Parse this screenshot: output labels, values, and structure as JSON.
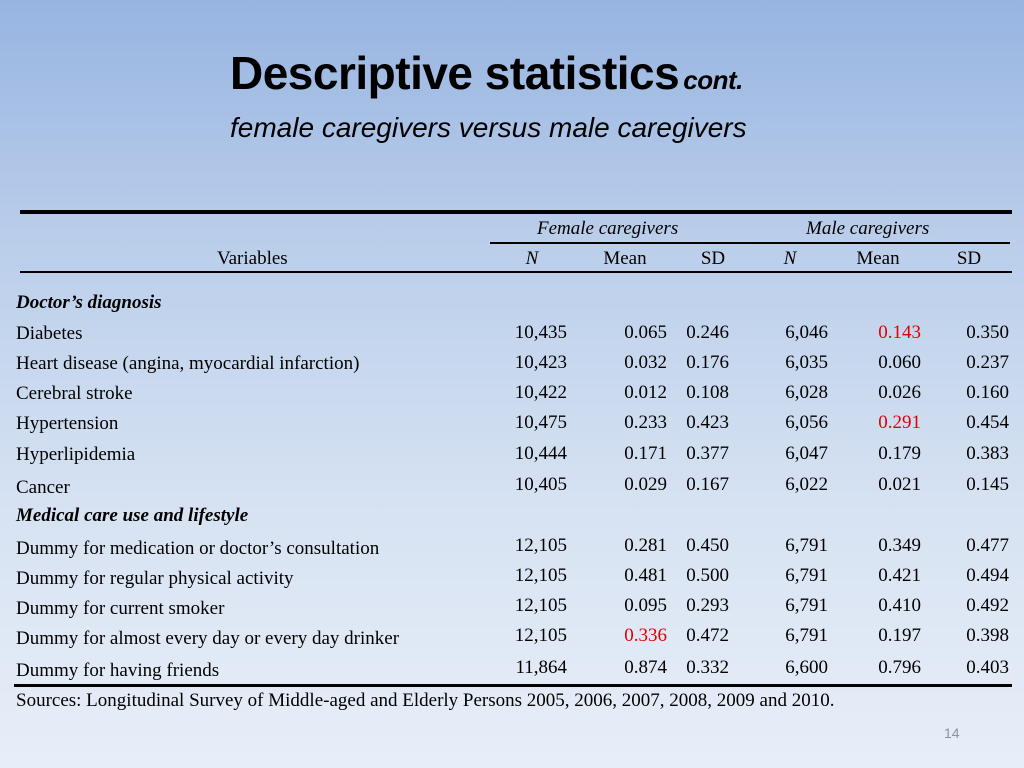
{
  "title": "Descriptive statistics",
  "title_suffix": "cont.",
  "subtitle": "female caregivers versus male caregivers",
  "table": {
    "group_headers": [
      "Female caregivers",
      "Male caregivers"
    ],
    "variables_header": "Variables",
    "column_headers": [
      "N",
      "Mean",
      "SD",
      "N",
      "Mean",
      "SD"
    ],
    "sections": [
      {
        "title": "Doctor’s diagnosis",
        "rows": [
          {
            "label": "Diabetes",
            "values": [
              "10,435",
              "0.065",
              "0.246",
              "6,046",
              "0.143",
              "0.350"
            ],
            "highlight": [
              4
            ]
          },
          {
            "label": "Heart disease (angina, myocardial infarction)",
            "values": [
              "10,423",
              "0.032",
              "0.176",
              "6,035",
              "0.060",
              "0.237"
            ],
            "highlight": []
          },
          {
            "label": "Cerebral stroke",
            "values": [
              "10,422",
              "0.012",
              "0.108",
              "6,028",
              "0.026",
              "0.160"
            ],
            "highlight": []
          },
          {
            "label": "Hypertension",
            "values": [
              "10,475",
              "0.233",
              "0.423",
              "6,056",
              "0.291",
              "0.454"
            ],
            "highlight": [
              4
            ]
          },
          {
            "label": "Hyperlipidemia",
            "values": [
              "10,444",
              "0.171",
              "0.377",
              "6,047",
              "0.179",
              "0.383"
            ],
            "highlight": []
          },
          {
            "label": "Cancer",
            "values": [
              "10,405",
              "0.029",
              "0.167",
              "6,022",
              "0.021",
              "0.145"
            ],
            "highlight": []
          }
        ]
      },
      {
        "title": "Medical care use and lifestyle",
        "rows": [
          {
            "label": "Dummy for medication or doctor’s consultation",
            "values": [
              "12,105",
              "0.281",
              "0.450",
              "6,791",
              "0.349",
              "0.477"
            ],
            "highlight": []
          },
          {
            "label": "Dummy for regular physical activity",
            "values": [
              "12,105",
              "0.481",
              "0.500",
              "6,791",
              "0.421",
              "0.494"
            ],
            "highlight": []
          },
          {
            "label": "Dummy for current smoker",
            "values": [
              "12,105",
              "0.095",
              "0.293",
              "6,791",
              "0.410",
              "0.492"
            ],
            "highlight": []
          },
          {
            "label": "Dummy for almost every day or every day drinker",
            "values": [
              "12,105",
              "0.336",
              "0.472",
              "6,791",
              "0.197",
              "0.398"
            ],
            "highlight": [
              1
            ]
          },
          {
            "label": "Dummy for having friends",
            "values": [
              "11,864",
              "0.874",
              "0.332",
              "6,600",
              "0.796",
              "0.403"
            ],
            "highlight": []
          }
        ]
      }
    ],
    "highlight_color": "#e00000"
  },
  "sources": "Sources: Longitudinal Survey of Middle-aged and Elderly Persons 2005, 2006, 2007, 2008, 2009 and 2010.",
  "page_number": "14"
}
